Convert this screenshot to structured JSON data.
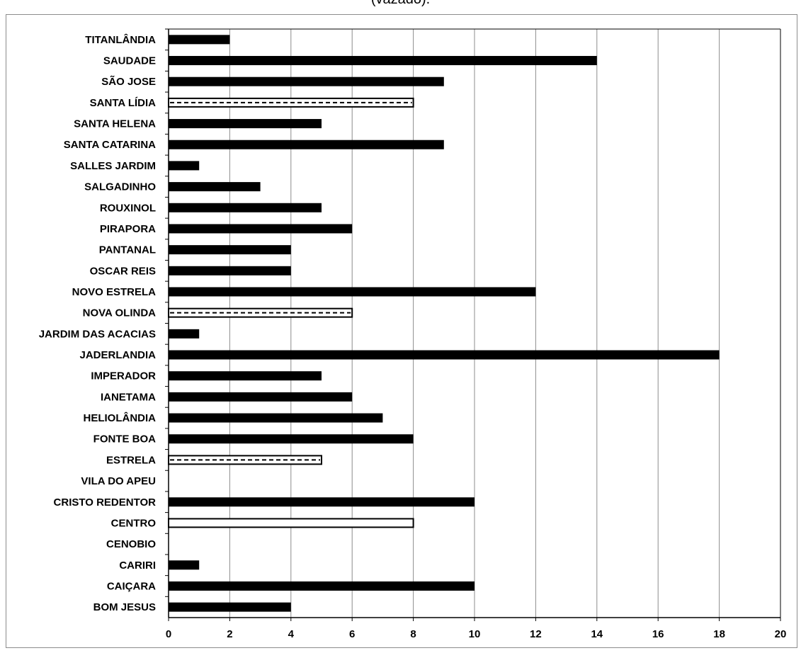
{
  "chart_data": {
    "type": "bar",
    "orientation": "horizontal",
    "title": "(vazado).",
    "xlabel": "",
    "ylabel": "",
    "xlim": [
      0,
      20
    ],
    "x_ticks": [
      0,
      2,
      4,
      6,
      8,
      10,
      12,
      14,
      16,
      18,
      20
    ],
    "grid": true,
    "legend": "none",
    "categories": [
      "TITANLÂNDIA",
      "SAUDADE",
      "SÃO JOSE",
      "SANTA LÍDIA",
      "SANTA HELENA",
      "SANTA CATARINA",
      "SALLES JARDIM",
      "SALGADINHO",
      "ROUXINOL",
      "PIRAPORA",
      "PANTANAL",
      "OSCAR REIS",
      "NOVO ESTRELA",
      "NOVA OLINDA",
      "JARDIM DAS ACACIAS",
      "JADERLANDIA",
      "IMPERADOR",
      "IANETAMA",
      "HELIOLÂNDIA",
      "FONTE BOA",
      "ESTRELA",
      "VILA DO APEU",
      "CRISTO REDENTOR",
      "CENTRO",
      "CENOBIO",
      "CARIRI",
      "CAIÇARA",
      "BOM JESUS"
    ],
    "values": [
      2,
      14,
      9,
      8,
      5,
      9,
      1,
      3,
      5,
      6,
      4,
      4,
      12,
      6,
      1,
      18,
      5,
      6,
      7,
      8,
      5,
      0,
      10,
      8,
      0,
      1,
      10,
      4
    ],
    "bar_styles": [
      "solid",
      "solid",
      "solid",
      "dashed",
      "solid",
      "solid",
      "solid",
      "solid",
      "solid",
      "solid",
      "solid",
      "solid",
      "solid",
      "dashed",
      "solid",
      "solid",
      "solid",
      "solid",
      "solid",
      "solid",
      "dashed",
      "solid",
      "solid",
      "hollow",
      "solid",
      "solid",
      "solid",
      "solid"
    ],
    "colors": {
      "bar": "#000000",
      "hollow_fill": "#ffffff",
      "grid": "#8c8c8c",
      "axis": "#000000"
    }
  }
}
